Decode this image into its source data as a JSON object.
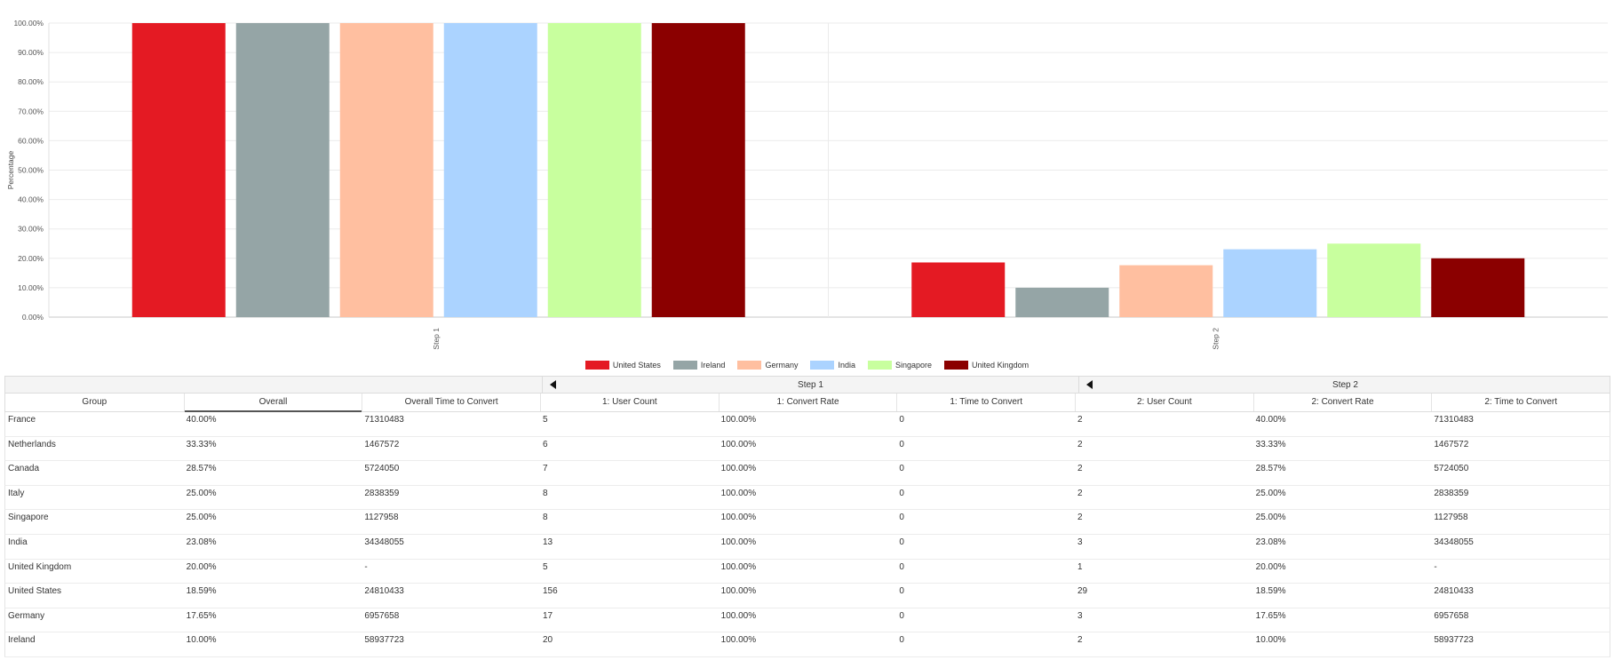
{
  "chart_data": {
    "type": "bar",
    "ylabel": "Percentage",
    "xlabel": "",
    "ylim": [
      0,
      100
    ],
    "yticks": [
      "0.00%",
      "10.00%",
      "20.00%",
      "30.00%",
      "40.00%",
      "50.00%",
      "60.00%",
      "70.00%",
      "80.00%",
      "90.00%",
      "100.00%"
    ],
    "categories": [
      "Step 1",
      "Step 2"
    ],
    "legend_position": "bottom-center",
    "grid": true,
    "series": [
      {
        "name": "United States",
        "color": "#e41a23",
        "values": [
          100,
          18.59
        ]
      },
      {
        "name": "Ireland",
        "color": "#95a5a6",
        "values": [
          100,
          10
        ]
      },
      {
        "name": "Germany",
        "color": "#ffbfa0",
        "values": [
          100,
          17.65
        ]
      },
      {
        "name": "India",
        "color": "#abd3ff",
        "values": [
          100,
          23.08
        ]
      },
      {
        "name": "Singapore",
        "color": "#c8ff9e",
        "values": [
          100,
          25
        ]
      },
      {
        "name": "United Kingdom",
        "color": "#8b0000",
        "values": [
          100,
          20
        ]
      }
    ]
  },
  "table": {
    "step_groups": [
      "",
      "Step 1",
      "Step 2"
    ],
    "headers": [
      "Group",
      "Overall",
      "Overall Time to Convert",
      "1: User Count",
      "1: Convert Rate",
      "1: Time to Convert",
      "2: User Count",
      "2: Convert Rate",
      "2: Time to Convert"
    ],
    "sorted_column": "Overall",
    "rows": [
      [
        "France",
        "40.00%",
        "71310483",
        "5",
        "100.00%",
        "0",
        "2",
        "40.00%",
        "71310483"
      ],
      [
        "Netherlands",
        "33.33%",
        "1467572",
        "6",
        "100.00%",
        "0",
        "2",
        "33.33%",
        "1467572"
      ],
      [
        "Canada",
        "28.57%",
        "5724050",
        "7",
        "100.00%",
        "0",
        "2",
        "28.57%",
        "5724050"
      ],
      [
        "Italy",
        "25.00%",
        "2838359",
        "8",
        "100.00%",
        "0",
        "2",
        "25.00%",
        "2838359"
      ],
      [
        "Singapore",
        "25.00%",
        "1127958",
        "8",
        "100.00%",
        "0",
        "2",
        "25.00%",
        "1127958"
      ],
      [
        "India",
        "23.08%",
        "34348055",
        "13",
        "100.00%",
        "0",
        "3",
        "23.08%",
        "34348055"
      ],
      [
        "United Kingdom",
        "20.00%",
        "-",
        "5",
        "100.00%",
        "0",
        "1",
        "20.00%",
        "-"
      ],
      [
        "United States",
        "18.59%",
        "24810433",
        "156",
        "100.00%",
        "0",
        "29",
        "18.59%",
        "24810433"
      ],
      [
        "Germany",
        "17.65%",
        "6957658",
        "17",
        "100.00%",
        "0",
        "3",
        "17.65%",
        "6957658"
      ],
      [
        "Ireland",
        "10.00%",
        "58937723",
        "20",
        "100.00%",
        "0",
        "2",
        "10.00%",
        "58937723"
      ]
    ]
  }
}
